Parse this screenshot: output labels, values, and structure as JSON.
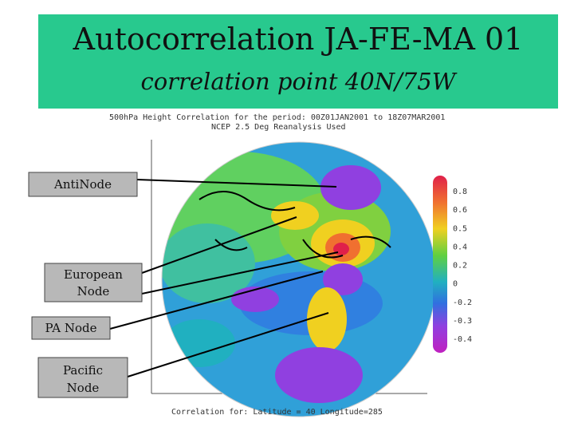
{
  "header": {
    "title": "Autocorrelation JA-FE-MA 01",
    "subtitle": "correlation point 40N/75W"
  },
  "figure": {
    "header_lines": [
      "500hPa Height Correlation for the period: 00Z01JAN2001 to 18Z07MAR2001",
      "NCEP 2.5 Deg Reanalysis Used"
    ],
    "caption": "Correlation for:  Latitude = 40  Longitude=285",
    "colorbar_labels": [
      "0.8",
      "0.6",
      "0.5",
      "0.4",
      "0.2",
      "0",
      "-0.2",
      "-0.3",
      "-0.4"
    ]
  },
  "labels": {
    "anti_node": "AntiNode",
    "european_node": [
      "European",
      "Node"
    ],
    "pa_node": "PA Node",
    "pacific_node": [
      "Pacific",
      "Node"
    ]
  }
}
